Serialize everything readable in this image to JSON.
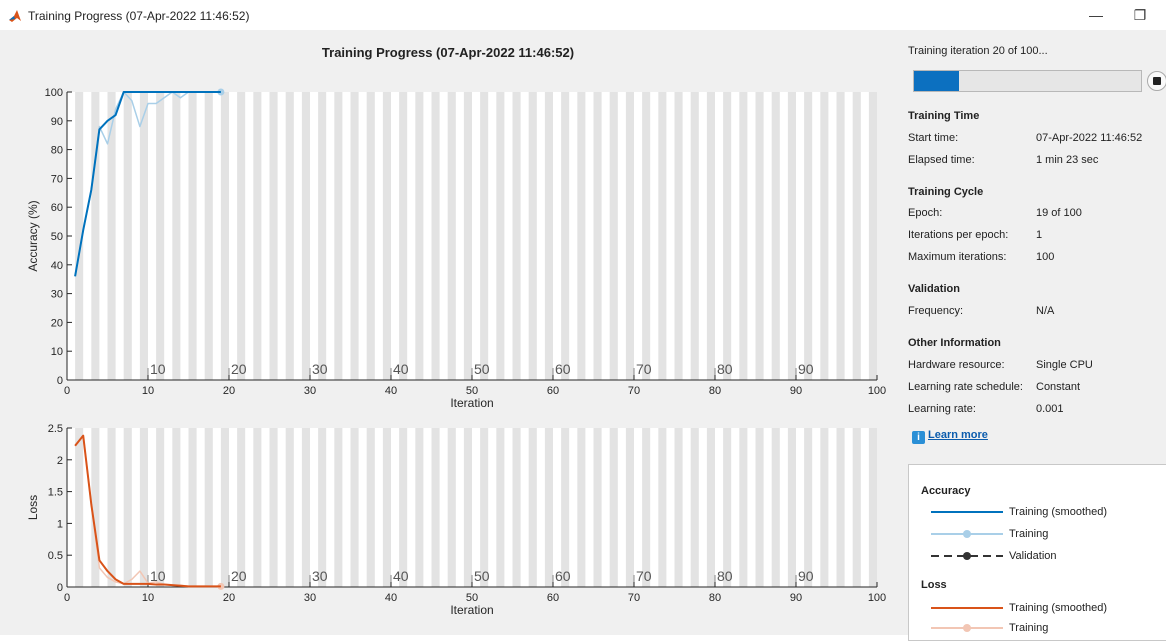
{
  "window": {
    "title": "Training Progress (07-Apr-2022 11:46:52)",
    "minimize_glyph": "—",
    "restore_glyph": "❐"
  },
  "plot": {
    "title": "Training Progress (07-Apr-2022 11:46:52)"
  },
  "chart_data": [
    {
      "type": "line",
      "ylabel": "Accuracy (%)",
      "xlabel": "Iteration",
      "xlim": [
        0,
        100
      ],
      "ylim": [
        0,
        100
      ],
      "xticks": [
        0,
        10,
        20,
        30,
        40,
        50,
        60,
        70,
        80,
        90,
        100
      ],
      "yticks": [
        0,
        10,
        20,
        30,
        40,
        50,
        60,
        70,
        80,
        90,
        100
      ],
      "epoch_labels": [
        "10",
        "20",
        "30",
        "40",
        "50",
        "60",
        "70",
        "80",
        "90"
      ],
      "epoch_shading": true,
      "series": [
        {
          "name": "Training (smoothed)",
          "color": "#0072bd",
          "x": [
            1,
            2,
            3,
            4,
            5,
            6,
            7,
            8,
            9,
            10,
            11,
            12,
            13,
            14,
            15,
            16,
            17,
            18,
            19
          ],
          "y": [
            36,
            52,
            66,
            87,
            90,
            92,
            100,
            100,
            100,
            100,
            100,
            100,
            100,
            100,
            100,
            100,
            100,
            100,
            100
          ]
        },
        {
          "name": "Training",
          "color": "#a9cfe8",
          "x": [
            1,
            2,
            3,
            4,
            5,
            6,
            7,
            8,
            9,
            10,
            11,
            12,
            13,
            14,
            15,
            16,
            17,
            18,
            19
          ],
          "y": [
            36,
            52,
            66,
            88,
            82,
            94,
            100,
            97,
            88,
            96,
            96,
            98,
            100,
            98,
            100,
            100,
            100,
            100,
            100
          ]
        }
      ]
    },
    {
      "type": "line",
      "ylabel": "Loss",
      "xlabel": "Iteration",
      "xlim": [
        0,
        100
      ],
      "ylim": [
        0,
        2.5
      ],
      "xticks": [
        0,
        10,
        20,
        30,
        40,
        50,
        60,
        70,
        80,
        90,
        100
      ],
      "yticks": [
        0,
        0.5,
        1,
        1.5,
        2,
        2.5
      ],
      "epoch_labels": [
        "10",
        "20",
        "30",
        "40",
        "50",
        "60",
        "70",
        "80",
        "90"
      ],
      "epoch_shading": true,
      "series": [
        {
          "name": "Training (smoothed)",
          "color": "#d95319",
          "x": [
            1,
            2,
            3,
            4,
            5,
            6,
            7,
            8,
            9,
            10,
            11,
            12,
            13,
            14,
            15,
            16,
            17,
            18,
            19
          ],
          "y": [
            2.22,
            2.38,
            1.3,
            0.42,
            0.25,
            0.12,
            0.05,
            0.05,
            0.05,
            0.05,
            0.04,
            0.04,
            0.03,
            0.02,
            0.01,
            0.01,
            0.01,
            0.01,
            0.01
          ]
        },
        {
          "name": "Training",
          "color": "#f2c6b4",
          "x": [
            1,
            2,
            3,
            4,
            5,
            6,
            7,
            8,
            9,
            10,
            11,
            12,
            13,
            14,
            15,
            16,
            17,
            18,
            19
          ],
          "y": [
            2.22,
            2.38,
            1.3,
            0.3,
            0.15,
            0.08,
            0.05,
            0.12,
            0.25,
            0.06,
            0.08,
            0.04,
            0.03,
            0.03,
            0.01,
            0.01,
            0.01,
            0.01,
            0.01
          ]
        }
      ]
    }
  ],
  "side": {
    "status": "Training iteration 20 of 100...",
    "progress": 0.2,
    "training_time": {
      "heading": "Training Time",
      "start_label": "Start time:",
      "start_value": "07-Apr-2022 11:46:52",
      "elapsed_label": "Elapsed time:",
      "elapsed_value": "1 min 23 sec"
    },
    "training_cycle": {
      "heading": "Training Cycle",
      "epoch_label": "Epoch:",
      "epoch_value": "19 of 100",
      "ipe_label": "Iterations per epoch:",
      "ipe_value": "1",
      "maxit_label": "Maximum iterations:",
      "maxit_value": "100"
    },
    "validation": {
      "heading": "Validation",
      "freq_label": "Frequency:",
      "freq_value": "N/A"
    },
    "other": {
      "heading": "Other Information",
      "hw_label": "Hardware resource:",
      "hw_value": "Single CPU",
      "lrs_label": "Learning rate schedule:",
      "lrs_value": "Constant",
      "lr_label": "Learning rate:",
      "lr_value": "0.001"
    },
    "learn_more": "Learn more",
    "info_glyph": "i"
  },
  "legend": {
    "accuracy_heading": "Accuracy",
    "acc_smoothed": "Training (smoothed)",
    "acc_training": "Training",
    "acc_validation": "Validation",
    "loss_heading": "Loss",
    "loss_smoothed": "Training (smoothed)",
    "loss_training": "Training",
    "colors": {
      "acc_smoothed": "#0072bd",
      "acc_training": "#a9cfe8",
      "validation": "#333333",
      "loss_smoothed": "#d95319",
      "loss_training": "#f2c6b4"
    }
  }
}
